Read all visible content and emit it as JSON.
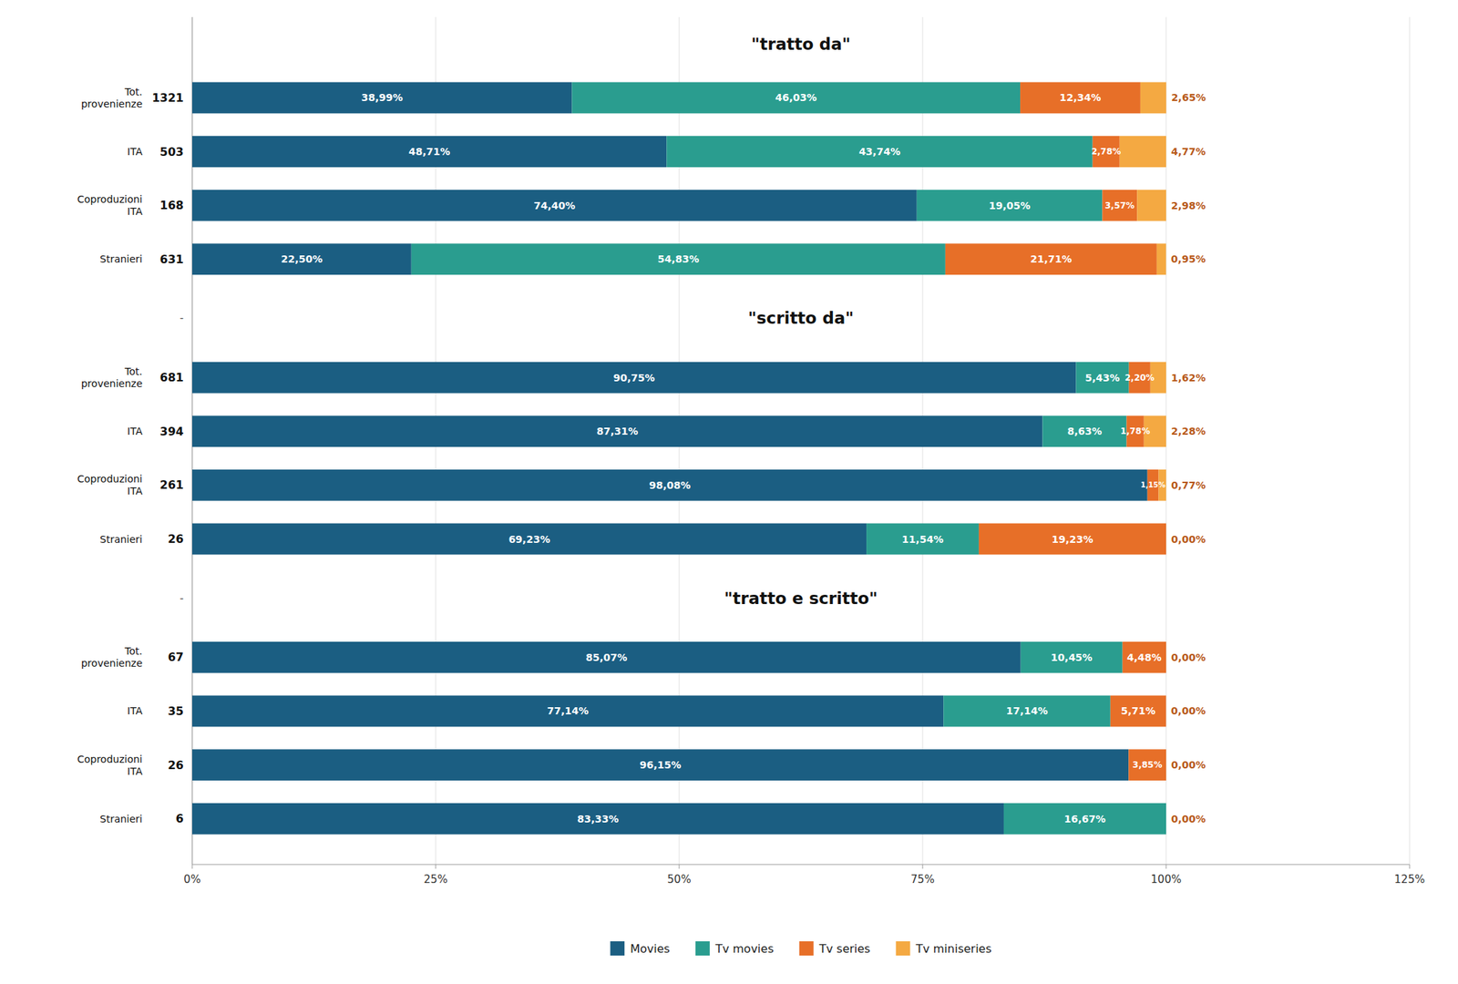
{
  "chart_data": {
    "type": "bar",
    "orientation": "horizontal",
    "stacked": true,
    "data_labels": true,
    "grid": true,
    "legend": "bottom",
    "xlim": [
      0,
      125
    ],
    "xticks": [
      {
        "value": 0,
        "label": "0%"
      },
      {
        "value": 25,
        "label": "25%"
      },
      {
        "value": 50,
        "label": "50%"
      },
      {
        "value": 75,
        "label": "75%"
      },
      {
        "value": 100,
        "label": "100%"
      },
      {
        "value": 125,
        "label": "125%"
      }
    ],
    "separator_label": "-",
    "series": [
      {
        "name": "Movies",
        "color": "#1b5e82"
      },
      {
        "name": "Tv movies",
        "color": "#2a9d8f"
      },
      {
        "name": "Tv series",
        "color": "#e76f28"
      },
      {
        "name": "Tv miniseries",
        "color": "#f4a942"
      }
    ],
    "sections": [
      {
        "title": "\"tratto da\"",
        "categories": [
          "Tot.\nprovenienze",
          "ITA",
          "Coproduzioni\nITA",
          "Stranieri"
        ],
        "counts": [
          1321,
          503,
          168,
          631
        ],
        "series": [
          {
            "values": [
              38.99,
              48.71,
              74.4,
              22.5
            ],
            "value_labels": [
              "38,99%",
              "48,71%",
              "74,40%",
              "22,50%"
            ]
          },
          {
            "values": [
              46.03,
              43.74,
              19.05,
              54.83
            ],
            "value_labels": [
              "46,03%",
              "43,74%",
              "19,05%",
              "54,83%"
            ]
          },
          {
            "values": [
              12.34,
              2.78,
              3.57,
              21.71
            ],
            "value_labels": [
              "12,34%",
              "2,78%",
              "3,57%",
              "21,71%"
            ]
          },
          {
            "values": [
              2.65,
              4.77,
              2.98,
              0.95
            ],
            "value_labels": [
              "2,65%",
              "4,77%",
              "2,98%",
              "0,95%"
            ]
          }
        ]
      },
      {
        "title": "\"scritto da\"",
        "categories": [
          "Tot.\nprovenienze",
          "ITA",
          "Coproduzioni\nITA",
          "Stranieri"
        ],
        "counts": [
          681,
          394,
          261,
          26
        ],
        "series": [
          {
            "values": [
              90.75,
              87.31,
              98.08,
              69.23
            ],
            "value_labels": [
              "90,75%",
              "87,31%",
              "98,08%",
              "69,23%"
            ]
          },
          {
            "values": [
              5.43,
              8.63,
              0.0,
              11.54
            ],
            "value_labels": [
              "5,43%",
              "8,63%",
              null,
              "11,54%"
            ]
          },
          {
            "values": [
              2.2,
              1.78,
              1.15,
              19.23
            ],
            "value_labels": [
              "2,20%",
              "1,78%",
              "1,15%",
              "19,23%"
            ]
          },
          {
            "values": [
              1.62,
              2.28,
              0.77,
              0.0
            ],
            "value_labels": [
              "1,62%",
              "2,28%",
              "0,77%",
              "0,00%"
            ]
          }
        ]
      },
      {
        "title": "\"tratto e scritto\"",
        "categories": [
          "Tot.\nprovenienze",
          "ITA",
          "Coproduzioni\nITA",
          "Stranieri"
        ],
        "counts": [
          67,
          35,
          26,
          6
        ],
        "series": [
          {
            "values": [
              85.07,
              77.14,
              96.15,
              83.33
            ],
            "value_labels": [
              "85,07%",
              "77,14%",
              "96,15%",
              "83,33%"
            ]
          },
          {
            "values": [
              10.45,
              17.14,
              0.0,
              16.67
            ],
            "value_labels": [
              "10,45%",
              "17,14%",
              null,
              "16,67%"
            ]
          },
          {
            "values": [
              4.48,
              5.71,
              3.85,
              0.0
            ],
            "value_labels": [
              "4,48%",
              "5,71%",
              "3,85%",
              null
            ]
          },
          {
            "values": [
              0.0,
              0.0,
              0.0,
              0.0
            ],
            "value_labels": [
              "0,00%",
              "0,00%",
              "0,00%",
              "0,00%"
            ]
          }
        ]
      }
    ]
  }
}
